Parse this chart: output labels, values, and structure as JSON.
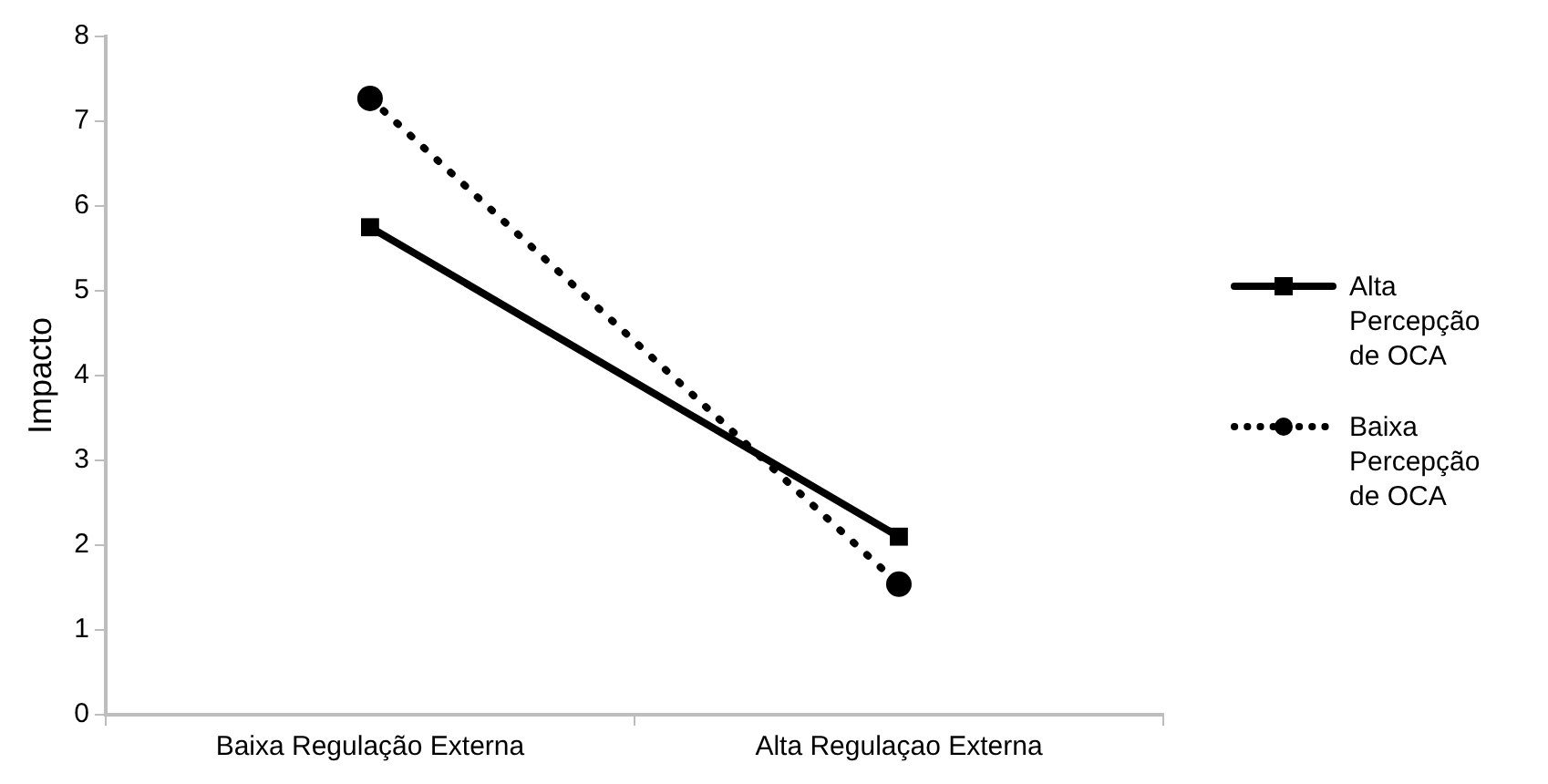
{
  "chart_data": {
    "type": "line",
    "ylabel": "Impacto",
    "categories": [
      "Baixa Regulação Externa",
      "Alta Regulaçao Externa"
    ],
    "series": [
      {
        "name": "Alta Percepção de OCA",
        "color": "#000000",
        "values": [
          5.75,
          2.1
        ],
        "marker": "square",
        "line_style": "solid"
      },
      {
        "name": "Baixa Percepção de OCA",
        "color": "#000000",
        "values": [
          7.27,
          1.54
        ],
        "marker": "circle",
        "line_style": "dotted"
      }
    ],
    "ylim": [
      0,
      8
    ],
    "yticks": [
      0,
      1,
      2,
      3,
      4,
      5,
      6,
      7,
      8
    ],
    "grid": false,
    "legend": "right"
  }
}
